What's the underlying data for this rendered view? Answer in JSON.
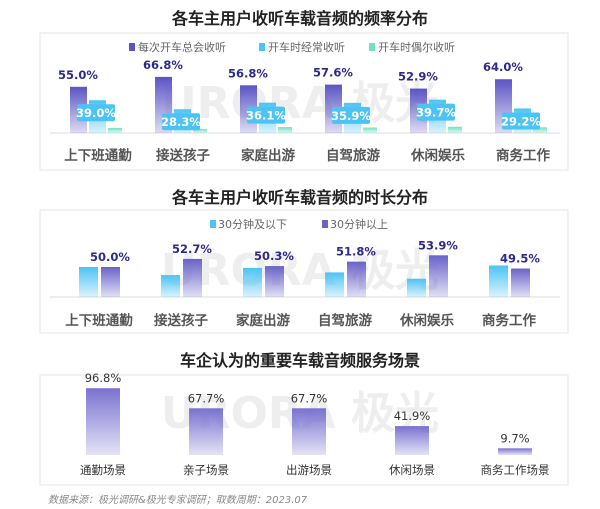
{
  "chart_data": [
    {
      "type": "bar",
      "title": "各车主用户收听车载音频的频率分布",
      "categories": [
        "上下班通勤",
        "接送孩子",
        "家庭出游",
        "自驾旅游",
        "休闲娱乐",
        "商务工作"
      ],
      "series": [
        {
          "name": "每次开车总会收听",
          "values": [
            55.0,
            66.8,
            56.8,
            57.6,
            52.9,
            64.0
          ],
          "color": "#5b54c4",
          "labeled": true
        },
        {
          "name": "开车时经常收听",
          "values": [
            39.0,
            28.3,
            36.1,
            35.9,
            39.7,
            29.2
          ],
          "color": "#4cc3f5",
          "labeled": true
        },
        {
          "name": "开车时偶尔收听",
          "values": [
            6.0,
            4.9,
            7.1,
            6.5,
            7.4,
            6.8
          ],
          "color": "#6fe0c4",
          "labeled": false
        }
      ],
      "ylim": [
        0,
        100
      ],
      "legend": "top",
      "grid": false
    },
    {
      "type": "bar",
      "title": "各车主用户收听车载音频的时长分布",
      "categories": [
        "上下班通勤",
        "接送孩子",
        "家庭出游",
        "自驾旅游",
        "休闲娱乐",
        "商务工作"
      ],
      "series": [
        {
          "name": "30分钟及以下",
          "values": [
            50.0,
            47.3,
            49.7,
            48.2,
            46.1,
            50.5
          ],
          "color": "#4cc3f5",
          "labeled": false
        },
        {
          "name": "30分钟以上",
          "values": [
            50.0,
            52.7,
            50.3,
            51.8,
            53.9,
            49.5
          ],
          "color": "#6a63c8",
          "labeled": true
        }
      ],
      "ylim": [
        40,
        65
      ],
      "legend": "top",
      "grid": false
    },
    {
      "type": "bar",
      "title": "车企认为的重要车载音频服务场景",
      "categories": [
        "通勤场景",
        "亲子场景",
        "出游场景",
        "休闲场景",
        "商务工作场景"
      ],
      "values": [
        96.8,
        67.7,
        67.7,
        41.9,
        9.7
      ],
      "color": "#7a72d0",
      "ylim": [
        0,
        100
      ],
      "grid": false
    }
  ],
  "watermark": "URORA 极光",
  "footer": "数据来源：极光调研&极光专家调研；取数周期：2023.07"
}
